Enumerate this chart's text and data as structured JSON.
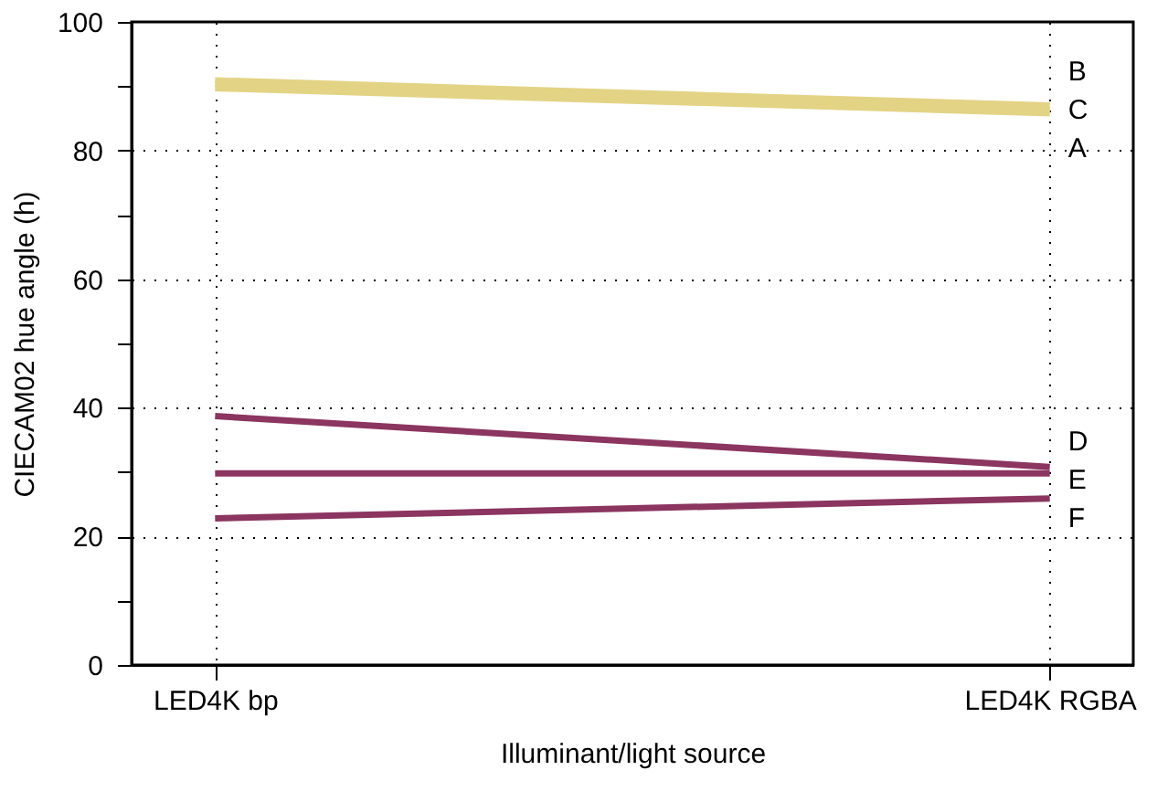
{
  "chart_data": {
    "type": "line",
    "xlabel": "Illuminant/light source",
    "ylabel": "CIECAM02 hue angle (h)",
    "categories": [
      "LED4K bp",
      "LED4K RGBA"
    ],
    "series": [
      {
        "name": "B",
        "color": "#e3d384",
        "values": [
          90.9,
          87.0
        ]
      },
      {
        "name": "C",
        "color": "#e3d384",
        "values": [
          90.3,
          86.4
        ]
      },
      {
        "name": "A",
        "color": "#e3d384",
        "values": [
          89.7,
          85.8
        ]
      },
      {
        "name": "D",
        "color": "#8b3560",
        "values": [
          38.7,
          30.8
        ]
      },
      {
        "name": "E",
        "color": "#8b3560",
        "values": [
          29.8,
          29.8
        ]
      },
      {
        "name": "F",
        "color": "#8b3560",
        "values": [
          22.8,
          25.9
        ]
      }
    ],
    "ylim": [
      0,
      100
    ],
    "yticks": [
      0,
      {
        "value": 10,
        "label": null
      },
      20,
      {
        "value": 30,
        "label": null
      },
      40,
      {
        "value": 50,
        "label": null
      },
      60,
      {
        "value": 70,
        "label": null
      },
      80,
      {
        "value": 90,
        "label": null
      },
      100
    ],
    "grid": true,
    "legend": false,
    "marker": "none",
    "line_style": "solid"
  }
}
